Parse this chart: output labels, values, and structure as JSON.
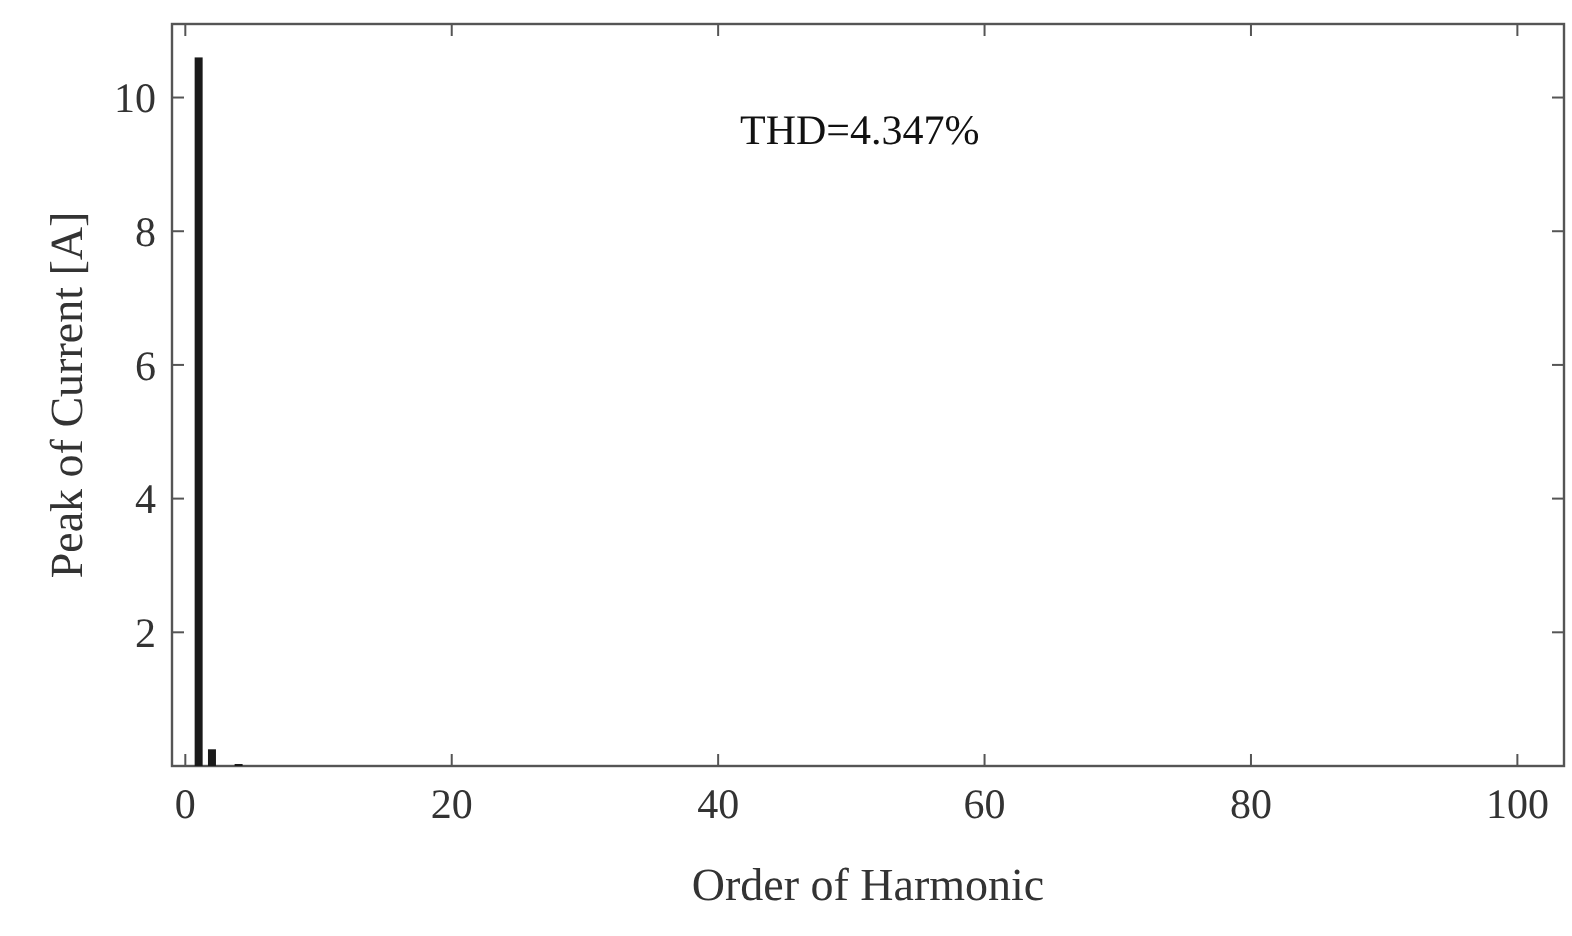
{
  "chart_data": {
    "type": "bar",
    "xlabel": "Order of Harmonic",
    "ylabel": "Peak of Current [A]",
    "x": [
      1,
      2,
      4
    ],
    "values": [
      10.6,
      0.25,
      0.03
    ],
    "color": "#1a1a1a",
    "xlim": [
      -1,
      103.5
    ],
    "xticks": [
      0,
      20,
      40,
      60,
      80,
      100
    ],
    "ylim": [
      0,
      11.1
    ],
    "yticks": [
      2,
      4,
      6,
      8,
      10
    ],
    "annotations": [
      "THD=4.347%"
    ],
    "grid": false
  }
}
